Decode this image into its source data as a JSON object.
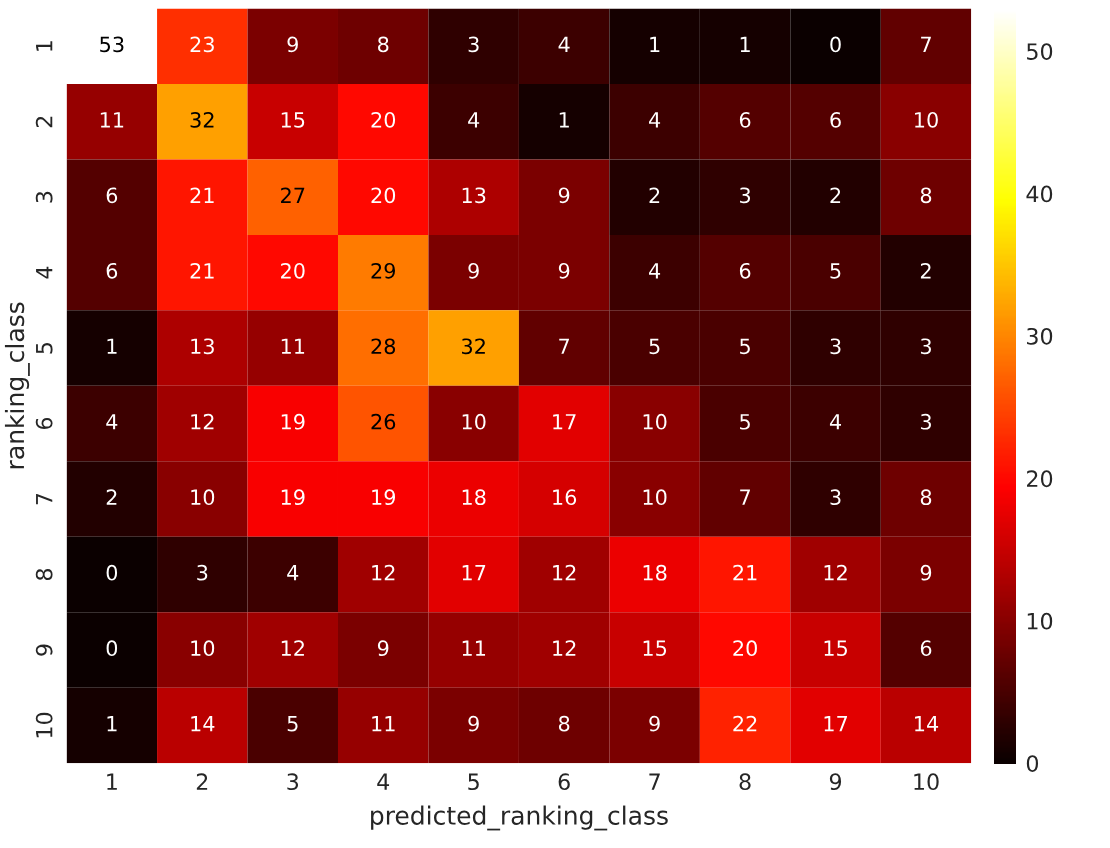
{
  "chart_data": {
    "type": "heatmap",
    "xlabel": "predicted_ranking_class",
    "ylabel": "ranking_class",
    "categories": [
      "1",
      "2",
      "3",
      "4",
      "5",
      "6",
      "7",
      "8",
      "9",
      "10"
    ],
    "y_categories": [
      "1",
      "2",
      "3",
      "4",
      "5",
      "6",
      "7",
      "8",
      "9",
      "10"
    ],
    "cells": [
      [
        53,
        23,
        9,
        8,
        3,
        4,
        1,
        1,
        0,
        7
      ],
      [
        11,
        32,
        15,
        20,
        4,
        1,
        4,
        6,
        6,
        10
      ],
      [
        6,
        21,
        27,
        20,
        13,
        9,
        2,
        3,
        2,
        8
      ],
      [
        6,
        21,
        20,
        29,
        9,
        9,
        4,
        6,
        5,
        2
      ],
      [
        1,
        13,
        11,
        28,
        32,
        7,
        5,
        5,
        3,
        3
      ],
      [
        4,
        12,
        19,
        26,
        10,
        17,
        10,
        5,
        4,
        3
      ],
      [
        2,
        10,
        19,
        19,
        18,
        16,
        10,
        7,
        3,
        8
      ],
      [
        0,
        3,
        4,
        12,
        17,
        12,
        18,
        21,
        12,
        9
      ],
      [
        0,
        10,
        12,
        9,
        11,
        12,
        15,
        20,
        15,
        6
      ],
      [
        1,
        14,
        5,
        11,
        9,
        8,
        9,
        22,
        17,
        14
      ]
    ],
    "data_labels": true,
    "clim": [
      0,
      53
    ],
    "cticks": [
      0,
      10,
      20,
      30,
      40,
      50
    ]
  }
}
